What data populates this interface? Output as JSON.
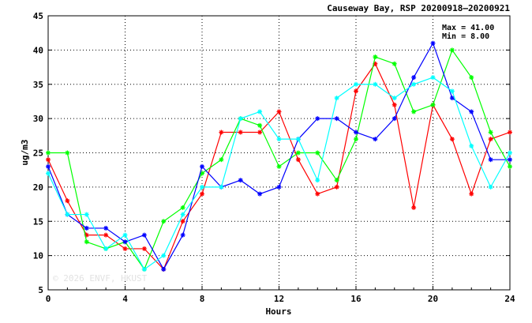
{
  "chart_data": {
    "type": "line",
    "title": "Causeway Bay, RSP 20200918–20200921",
    "xlabel": "Hours",
    "ylabel": "ug/m3",
    "xlim": [
      0,
      24
    ],
    "ylim": [
      5,
      45
    ],
    "xticks": [
      0,
      4,
      8,
      12,
      16,
      20,
      24
    ],
    "yticks": [
      5,
      10,
      15,
      20,
      25,
      30,
      35,
      40,
      45
    ],
    "grid": true,
    "legend": "none",
    "annotation_max": "Max = 41.00",
    "annotation_min": "Min =  8.00",
    "watermark": "© 2026  ENVF, HKUST",
    "x": [
      0,
      1,
      2,
      3,
      4,
      5,
      6,
      7,
      8,
      9,
      10,
      11,
      12,
      13,
      14,
      15,
      16,
      17,
      18,
      19,
      20,
      21,
      22,
      23,
      24
    ],
    "series": [
      {
        "color": "#ff0000",
        "values": [
          24,
          18,
          13,
          13,
          11,
          11,
          8,
          15,
          19,
          28,
          28,
          28,
          31,
          24,
          19,
          20,
          34,
          38,
          32,
          17,
          32,
          27,
          19,
          27,
          28
        ]
      },
      {
        "color": "#00ff00",
        "values": [
          25,
          25,
          12,
          11,
          12,
          8,
          15,
          17,
          22,
          24,
          30,
          29,
          23,
          25,
          25,
          21,
          27,
          39,
          38,
          31,
          32,
          40,
          36,
          28,
          23
        ]
      },
      {
        "color": "#0000ff",
        "values": [
          23,
          16,
          14,
          14,
          12,
          13,
          8,
          13,
          23,
          20,
          21,
          19,
          20,
          27,
          30,
          30,
          28,
          27,
          30,
          36,
          41,
          33,
          31,
          24,
          24
        ]
      },
      {
        "color": "#00ffff",
        "values": [
          22,
          16,
          16,
          11,
          13,
          8,
          10,
          16,
          20,
          20,
          30,
          31,
          27,
          27,
          21,
          33,
          35,
          35,
          33,
          35,
          36,
          34,
          26,
          20,
          25
        ]
      }
    ]
  }
}
